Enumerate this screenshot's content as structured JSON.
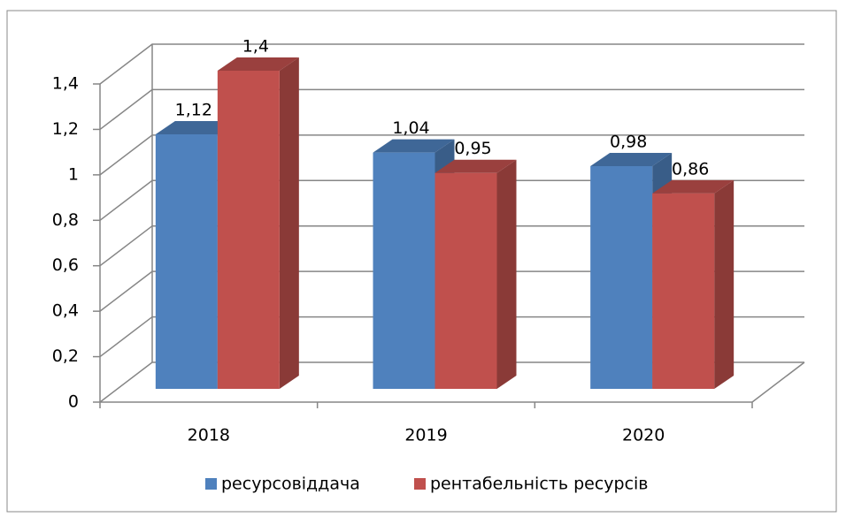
{
  "chart_data": {
    "type": "bar3d",
    "categories": [
      "2018",
      "2019",
      "2020"
    ],
    "series": [
      {
        "name": "ресурсовіддача",
        "color": "#4f81bd",
        "values": [
          1.12,
          1.04,
          0.98
        ],
        "value_labels": [
          "1,12",
          "1,04",
          "0,98"
        ]
      },
      {
        "name": "рентабельність ресурсів",
        "color": "#c0504d",
        "values": [
          1.4,
          0.95,
          0.86
        ],
        "value_labels": [
          "1,4",
          "0,95",
          "0,86"
        ]
      }
    ],
    "ylim": [
      0,
      1.4
    ],
    "yticks": [
      0,
      {
        "value": 0.2,
        "label": "0,2"
      },
      {
        "value": 0.4,
        "label": "0,4"
      },
      {
        "value": 0.6,
        "label": "0,6"
      },
      {
        "value": 0.8,
        "label": "0,8"
      },
      1,
      {
        "value": 1.2,
        "label": "1,2"
      },
      {
        "value": 1.4,
        "label": "1,4"
      }
    ],
    "grid": true,
    "legend": "bottom"
  }
}
